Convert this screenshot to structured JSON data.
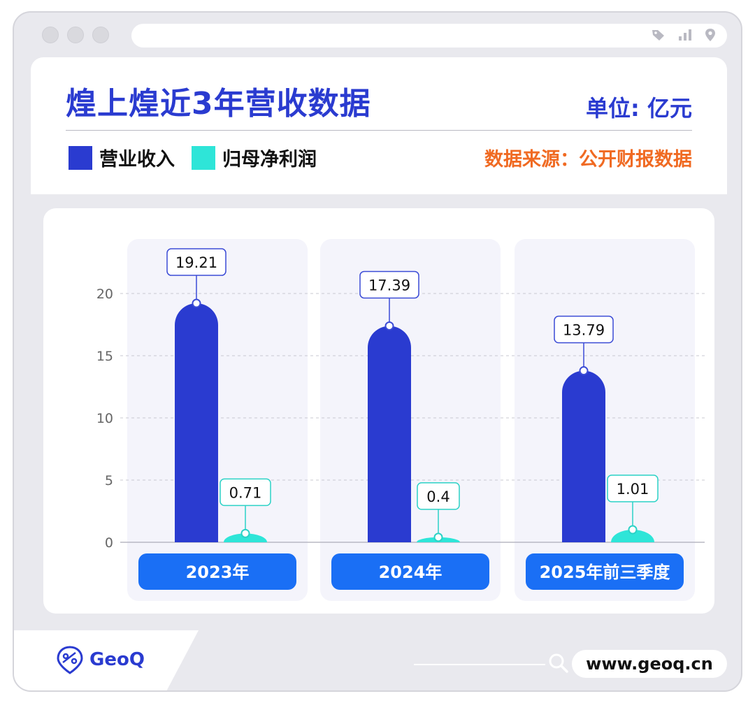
{
  "header": {
    "title": "煌上煌近3年营收数据",
    "unit": "单位: 亿元",
    "source": "数据来源：公开财报数据"
  },
  "colors": {
    "revenue": "#2a3bd0",
    "profit": "#2ee5d8",
    "source": "#f06a22",
    "category_pill": "#1a6ff5"
  },
  "chart_data": {
    "type": "bar",
    "categories": [
      "2023年",
      "2024年",
      "2025年前三季度"
    ],
    "series": [
      {
        "name": "营业收入",
        "values": [
          19.21,
          17.39,
          13.79
        ],
        "labels": [
          "19.21",
          "17.39",
          "13.79"
        ]
      },
      {
        "name": "归母净利润",
        "values": [
          0.71,
          0.4,
          1.01
        ],
        "labels": [
          "0.71",
          "0.4",
          "1.01"
        ]
      }
    ],
    "yticks": [
      "0",
      "5",
      "10",
      "15",
      "20"
    ],
    "ylim": [
      0,
      20
    ],
    "grid": true,
    "legend": "top-left"
  },
  "footer": {
    "brand": "GeoQ",
    "url": "www.geoq.cn",
    "icons": [
      "search-icon",
      "tag-icon",
      "signal-icon",
      "location-icon",
      "geoq-logo-icon"
    ]
  }
}
